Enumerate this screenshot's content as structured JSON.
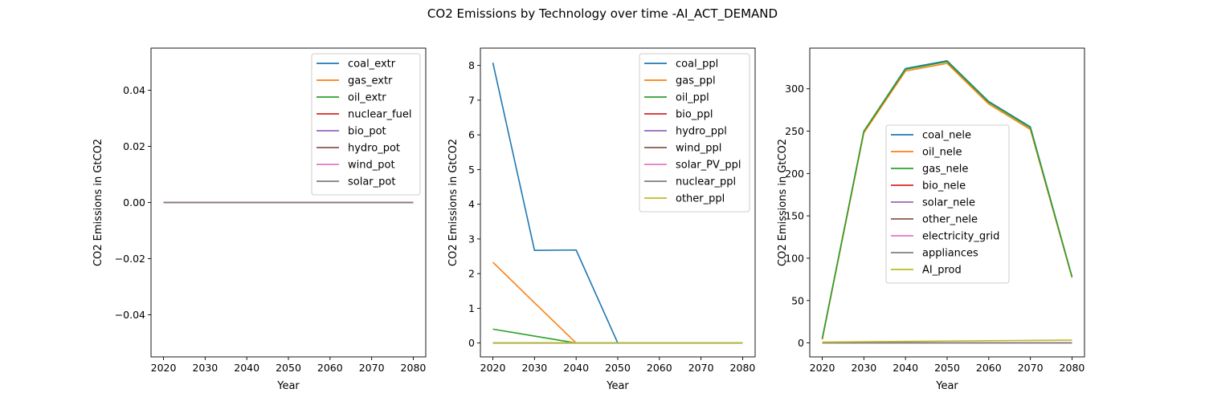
{
  "figure": {
    "title": "CO2 Emissions by Technology over time -AI_ACT_DEMAND"
  },
  "colors": {
    "tab_blue": "#1f77b4",
    "tab_orange": "#ff7f0e",
    "tab_green": "#2ca02c",
    "tab_red": "#d62728",
    "tab_purple": "#9467bd",
    "tab_brown": "#8c564b",
    "tab_pink": "#e377c2",
    "tab_gray": "#7f7f7f",
    "tab_olive": "#bcbd22"
  },
  "chart_data": [
    {
      "type": "line",
      "title": "",
      "xlabel": "Year",
      "ylabel": "CO2 Emissions in GtCO2",
      "x": [
        2020,
        2030,
        2040,
        2050,
        2060,
        2070,
        2080
      ],
      "xlim": [
        2017,
        2083
      ],
      "ylim": [
        -0.055,
        0.055
      ],
      "xticks": [
        2020,
        2030,
        2040,
        2050,
        2060,
        2070,
        2080
      ],
      "yticks": [
        -0.04,
        -0.02,
        0.0,
        0.02,
        0.04
      ],
      "ytick_labels": [
        "−0.04",
        "−0.02",
        "0.00",
        "0.02",
        "0.04"
      ],
      "grid": false,
      "legend_position": "upper right",
      "series": [
        {
          "name": "coal_extr",
          "color": "#1f77b4",
          "values": [
            0,
            0,
            0,
            0,
            0,
            0,
            0
          ]
        },
        {
          "name": "gas_extr",
          "color": "#ff7f0e",
          "values": [
            0,
            0,
            0,
            0,
            0,
            0,
            0
          ]
        },
        {
          "name": "oil_extr",
          "color": "#2ca02c",
          "values": [
            0,
            0,
            0,
            0,
            0,
            0,
            0
          ]
        },
        {
          "name": "nuclear_fuel",
          "color": "#d62728",
          "values": [
            0,
            0,
            0,
            0,
            0,
            0,
            0
          ]
        },
        {
          "name": "bio_pot",
          "color": "#9467bd",
          "values": [
            0,
            0,
            0,
            0,
            0,
            0,
            0
          ]
        },
        {
          "name": "hydro_pot",
          "color": "#8c564b",
          "values": [
            0,
            0,
            0,
            0,
            0,
            0,
            0
          ]
        },
        {
          "name": "wind_pot",
          "color": "#e377c2",
          "values": [
            0,
            0,
            0,
            0,
            0,
            0,
            0
          ]
        },
        {
          "name": "solar_pot",
          "color": "#7f7f7f",
          "values": [
            0,
            0,
            0,
            0,
            0,
            0,
            0
          ]
        }
      ]
    },
    {
      "type": "line",
      "title": "",
      "xlabel": "Year",
      "ylabel": "CO2 Emissions in GtCO2",
      "x": [
        2020,
        2030,
        2040,
        2050,
        2060,
        2070,
        2080
      ],
      "xlim": [
        2017,
        2083
      ],
      "ylim": [
        -0.4,
        8.5
      ],
      "xticks": [
        2020,
        2030,
        2040,
        2050,
        2060,
        2070,
        2080
      ],
      "yticks": [
        0,
        1,
        2,
        3,
        4,
        5,
        6,
        7,
        8
      ],
      "ytick_labels": [
        "0",
        "1",
        "2",
        "3",
        "4",
        "5",
        "6",
        "7",
        "8"
      ],
      "grid": false,
      "legend_position": "upper right",
      "series": [
        {
          "name": "coal_ppl",
          "color": "#1f77b4",
          "values": [
            8.08,
            2.67,
            2.68,
            0,
            0,
            0,
            0
          ]
        },
        {
          "name": "gas_ppl",
          "color": "#ff7f0e",
          "values": [
            2.33,
            1.16,
            0,
            0,
            0,
            0,
            0
          ]
        },
        {
          "name": "oil_ppl",
          "color": "#2ca02c",
          "values": [
            0.4,
            0.2,
            0,
            0,
            0,
            0,
            0
          ]
        },
        {
          "name": "bio_ppl",
          "color": "#d62728",
          "values": [
            0,
            0,
            0,
            0,
            0,
            0,
            0
          ]
        },
        {
          "name": "hydro_ppl",
          "color": "#9467bd",
          "values": [
            0,
            0,
            0,
            0,
            0,
            0,
            0
          ]
        },
        {
          "name": "wind_ppl",
          "color": "#8c564b",
          "values": [
            0,
            0,
            0,
            0,
            0,
            0,
            0
          ]
        },
        {
          "name": "solar_PV_ppl",
          "color": "#e377c2",
          "values": [
            0,
            0,
            0,
            0,
            0,
            0,
            0
          ]
        },
        {
          "name": "nuclear_ppl",
          "color": "#7f7f7f",
          "values": [
            0,
            0,
            0,
            0,
            0,
            0,
            0
          ]
        },
        {
          "name": "other_ppl",
          "color": "#bcbd22",
          "values": [
            0.01,
            0.01,
            0.01,
            0.01,
            0.01,
            0.01,
            0.01
          ]
        }
      ]
    },
    {
      "type": "line",
      "title": "",
      "xlabel": "Year",
      "ylabel": "CO2 Emissions in GtCO2",
      "x": [
        2020,
        2030,
        2040,
        2050,
        2060,
        2070,
        2080
      ],
      "xlim": [
        2017,
        2083
      ],
      "ylim": [
        -16.5,
        348
      ],
      "xticks": [
        2020,
        2030,
        2040,
        2050,
        2060,
        2070,
        2080
      ],
      "yticks": [
        0,
        50,
        100,
        150,
        200,
        250,
        300
      ],
      "ytick_labels": [
        "0",
        "50",
        "100",
        "150",
        "200",
        "250",
        "300"
      ],
      "grid": false,
      "legend_position": "center",
      "series": [
        {
          "name": "coal_nele",
          "color": "#1f77b4",
          "values": [
            5,
            250,
            324,
            333,
            285,
            255,
            78
          ]
        },
        {
          "name": "oil_nele",
          "color": "#ff7f0e",
          "values": [
            4,
            248,
            321,
            330,
            282,
            252,
            77
          ]
        },
        {
          "name": "gas_nele",
          "color": "#2ca02c",
          "values": [
            5,
            250,
            323,
            332,
            284,
            254,
            78
          ]
        },
        {
          "name": "bio_nele",
          "color": "#d62728",
          "values": [
            0,
            0,
            0,
            0,
            0,
            0,
            0
          ]
        },
        {
          "name": "solar_nele",
          "color": "#9467bd",
          "values": [
            0,
            0,
            0,
            0,
            0,
            0,
            0
          ]
        },
        {
          "name": "other_nele",
          "color": "#8c564b",
          "values": [
            0,
            0,
            0,
            0,
            0,
            0,
            0
          ]
        },
        {
          "name": "electricity_grid",
          "color": "#e377c2",
          "values": [
            0,
            0,
            0,
            0,
            0,
            0,
            0
          ]
        },
        {
          "name": "appliances",
          "color": "#7f7f7f",
          "values": [
            0,
            0,
            0,
            0,
            0,
            0,
            0
          ]
        },
        {
          "name": "AI_prod",
          "color": "#bcbd22",
          "values": [
            1,
            1.4,
            1.8,
            2.2,
            2.6,
            3.0,
            3.3
          ]
        }
      ]
    }
  ]
}
